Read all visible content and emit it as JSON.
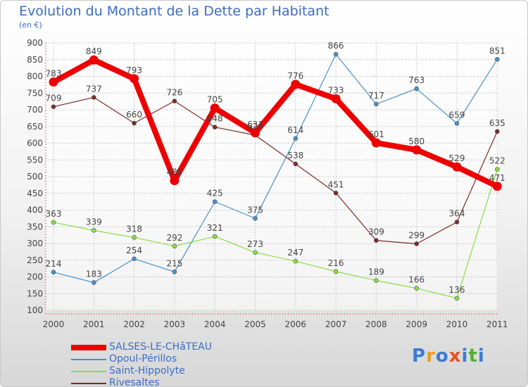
{
  "header": {
    "title": "Evolution du Montant de la Dette par Habitant",
    "subtitle": "(en €)"
  },
  "chart_data": {
    "type": "line",
    "title": "Evolution du Montant de la Dette par Habitant",
    "subtitle": "(en €)",
    "xlabel": "",
    "ylabel": "",
    "categories": [
      "2000",
      "2001",
      "2002",
      "2003",
      "2004",
      "2005",
      "2006",
      "2007",
      "2008",
      "2009",
      "2010",
      "2011"
    ],
    "yticks": [
      "100",
      "150",
      "200",
      "250",
      "300",
      "350",
      "400",
      "450",
      "500",
      "550",
      "600",
      "650",
      "700",
      "750",
      "800",
      "850",
      "900"
    ],
    "ylim": [
      100,
      900
    ],
    "grid": true,
    "legend_position": "bottom-left",
    "series": [
      {
        "name": "SALSES-LE-CHâTEAU",
        "color": "#ee0000",
        "values": [
          783,
          849,
          793,
          488,
          705,
          631,
          776,
          733,
          601,
          580,
          529,
          471
        ],
        "labels": [
          "783",
          "849",
          "793",
          "488",
          "705",
          "631",
          "776",
          "733",
          "601",
          "580",
          "529",
          "471"
        ]
      },
      {
        "name": "Opoul-Périllos",
        "color": "#4a90c8",
        "values": [
          214,
          183,
          254,
          215,
          425,
          375,
          614,
          866,
          717,
          763,
          659,
          851
        ],
        "labels": [
          "214",
          "183",
          "254",
          "215",
          "425",
          "375",
          "614",
          "866",
          "717",
          "763",
          "659",
          "851"
        ]
      },
      {
        "name": "Saint-Hippolyte",
        "color": "#88dd44",
        "values": [
          363,
          339,
          318,
          292,
          321,
          273,
          247,
          216,
          189,
          166,
          136,
          522
        ],
        "labels": [
          "363",
          "339",
          "318",
          "292",
          "321",
          "273",
          "247",
          "216",
          "189",
          "166",
          "136",
          "522"
        ]
      },
      {
        "name": "Rivesaltes",
        "color": "#7a2a2a",
        "values": [
          709,
          737,
          660,
          726,
          648,
          624,
          538,
          451,
          309,
          299,
          364,
          635
        ],
        "labels": [
          "709",
          "737",
          "660",
          "726",
          "648",
          "624",
          "538",
          "451",
          "309",
          "299",
          "364",
          "635"
        ]
      }
    ]
  },
  "logo": {
    "text": "Proxiti",
    "letters": [
      "P",
      "r",
      "o",
      "x",
      "i",
      "t",
      "i"
    ],
    "colors": [
      "#3a7bd5",
      "#e8a020",
      "#3a7bd5",
      "#e85020",
      "#3a7bd5",
      "#50b030",
      "#3a7bd5"
    ]
  }
}
